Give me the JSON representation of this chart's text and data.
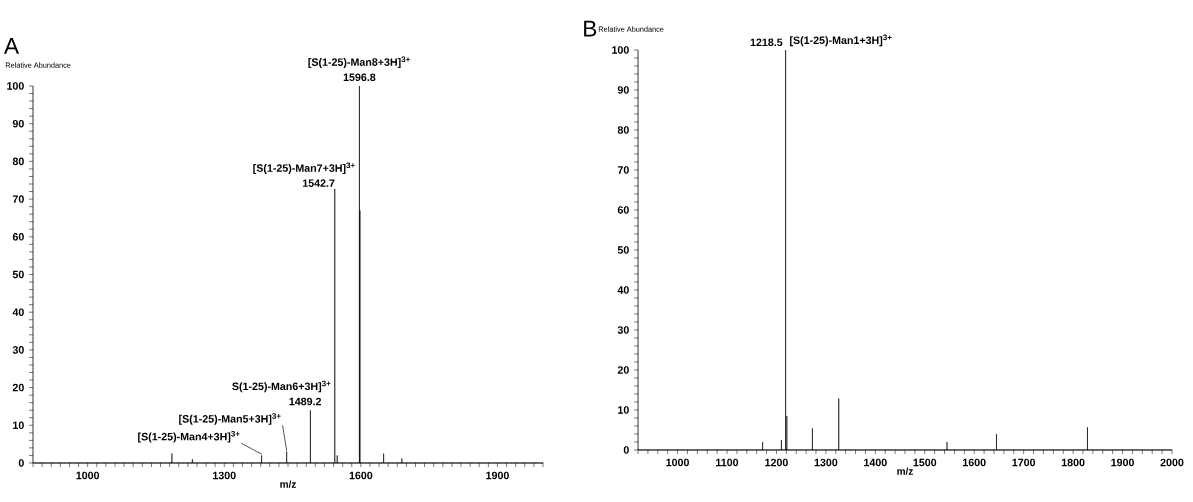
{
  "chart_data": [
    {
      "type": "line",
      "title": "A",
      "xlabel": "m/z",
      "ylabel": "Relative Abundance",
      "xlim": [
        880,
        2000
      ],
      "ylim": [
        0,
        100
      ],
      "xticks": [
        {
          "value": 880,
          "label": null
        },
        {
          "value": 900,
          "label": null
        },
        {
          "value": 920,
          "label": null
        },
        {
          "value": 940,
          "label": null
        },
        {
          "value": 960,
          "label": null
        },
        {
          "value": 980,
          "label": null
        },
        1000,
        {
          "value": 1020,
          "label": null
        },
        {
          "value": 1040,
          "label": null
        },
        {
          "value": 1060,
          "label": null
        },
        {
          "value": 1080,
          "label": null
        },
        {
          "value": 1100,
          "label": null
        },
        {
          "value": 1120,
          "label": null
        },
        {
          "value": 1140,
          "label": null
        },
        {
          "value": 1160,
          "label": null
        },
        {
          "value": 1180,
          "label": null
        },
        {
          "value": 1200,
          "label": null
        },
        {
          "value": 1220,
          "label": null
        },
        {
          "value": 1240,
          "label": null
        },
        {
          "value": 1260,
          "label": null
        },
        {
          "value": 1280,
          "label": null
        },
        1300,
        {
          "value": 1320,
          "label": null
        },
        {
          "value": 1340,
          "label": null
        },
        {
          "value": 1360,
          "label": null
        },
        {
          "value": 1380,
          "label": null
        },
        {
          "value": 1400,
          "label": null
        },
        {
          "value": 1420,
          "label": null
        },
        {
          "value": 1440,
          "label": null
        },
        {
          "value": 1460,
          "label": null
        },
        {
          "value": 1480,
          "label": null
        },
        {
          "value": 1500,
          "label": null
        },
        {
          "value": 1520,
          "label": null
        },
        {
          "value": 1540,
          "label": null
        },
        {
          "value": 1560,
          "label": null
        },
        {
          "value": 1580,
          "label": null
        },
        1600,
        {
          "value": 1620,
          "label": null
        },
        {
          "value": 1640,
          "label": null
        },
        {
          "value": 1660,
          "label": null
        },
        {
          "value": 1680,
          "label": null
        },
        {
          "value": 1700,
          "label": null
        },
        {
          "value": 1720,
          "label": null
        },
        {
          "value": 1740,
          "label": null
        },
        {
          "value": 1760,
          "label": null
        },
        {
          "value": 1780,
          "label": null
        },
        {
          "value": 1800,
          "label": null
        },
        {
          "value": 1820,
          "label": null
        },
        {
          "value": 1840,
          "label": null
        },
        {
          "value": 1860,
          "label": null
        },
        {
          "value": 1880,
          "label": null
        },
        1900,
        {
          "value": 1920,
          "label": null
        },
        {
          "value": 1940,
          "label": null
        },
        {
          "value": 1960,
          "label": null
        },
        {
          "value": 1980,
          "label": null
        },
        {
          "value": 2000,
          "label": null
        }
      ],
      "yticks": [
        0,
        {
          "value": 2,
          "label": null
        },
        {
          "value": 4,
          "label": null
        },
        {
          "value": 6,
          "label": null
        },
        {
          "value": 8,
          "label": null
        },
        10,
        {
          "value": 12,
          "label": null
        },
        {
          "value": 14,
          "label": null
        },
        {
          "value": 16,
          "label": null
        },
        {
          "value": 18,
          "label": null
        },
        20,
        {
          "value": 22,
          "label": null
        },
        {
          "value": 24,
          "label": null
        },
        {
          "value": 26,
          "label": null
        },
        {
          "value": 28,
          "label": null
        },
        30,
        {
          "value": 32,
          "label": null
        },
        {
          "value": 34,
          "label": null
        },
        {
          "value": 36,
          "label": null
        },
        {
          "value": 38,
          "label": null
        },
        40,
        {
          "value": 42,
          "label": null
        },
        {
          "value": 44,
          "label": null
        },
        {
          "value": 46,
          "label": null
        },
        {
          "value": 48,
          "label": null
        },
        50,
        {
          "value": 52,
          "label": null
        },
        {
          "value": 54,
          "label": null
        },
        {
          "value": 56,
          "label": null
        },
        {
          "value": 58,
          "label": null
        },
        60,
        {
          "value": 62,
          "label": null
        },
        {
          "value": 64,
          "label": null
        },
        {
          "value": 66,
          "label": null
        },
        {
          "value": 68,
          "label": null
        },
        70,
        {
          "value": 72,
          "label": null
        },
        {
          "value": 74,
          "label": null
        },
        {
          "value": 76,
          "label": null
        },
        {
          "value": 78,
          "label": null
        },
        80,
        {
          "value": 82,
          "label": null
        },
        {
          "value": 84,
          "label": null
        },
        {
          "value": 86,
          "label": null
        },
        {
          "value": 88,
          "label": null
        },
        90,
        {
          "value": 92,
          "label": null
        },
        {
          "value": 94,
          "label": null
        },
        {
          "value": 96,
          "label": null
        },
        {
          "value": 98,
          "label": null
        },
        100
      ],
      "series": [
        {
          "color": "#000000",
          "x": [
            880,
            1185,
            1185,
            1185,
            1230,
            1230,
            1230,
            1382,
            1382,
            1382,
            1437,
            1437,
            1437,
            1489.2,
            1489.2,
            1489.2,
            1542.7,
            1542.7,
            1542.7,
            1548,
            1548,
            1548,
            1596.8,
            1596.8,
            1596.8,
            1598,
            1598,
            1598,
            1650,
            1650,
            1650,
            1690,
            1690,
            1690,
            2000
          ],
          "values": [
            0,
            0,
            2.5,
            0,
            0,
            1,
            0,
            0,
            2,
            0,
            0,
            3,
            0,
            0,
            14,
            0,
            0,
            72.7,
            0,
            0,
            2,
            0,
            0,
            100,
            0,
            0,
            67,
            0,
            0,
            2.5,
            0,
            0,
            1.2,
            0,
            0
          ]
        }
      ],
      "annotations": [
        {
          "text": "1596.8",
          "x": 1596.8,
          "y": 100
        },
        {
          "text": "[S(1-25)-Man8+3H]$^{3+}$",
          "x": 1596.8,
          "y": 100
        },
        {
          "text": "1542.7",
          "x": 1542.7,
          "y": 72.7
        },
        {
          "text": "[S(1-25)-Man7+3H]$^{3+}$",
          "x": 1542.7,
          "y": 72.7
        },
        {
          "text": "1489.2",
          "x": 1489.2,
          "y": 14
        },
        {
          "text": "S(1-25)-Man6+3H]$^{3+}$",
          "x": 1489.2,
          "y": 14
        },
        {
          "text": "[S(1-25)-Man5+3H]$^{3+}$",
          "x": 1437,
          "y": 3
        },
        {
          "text": "[S(1-25)-Man4+3H]$^{3+}$",
          "x": 1382,
          "y": 2
        }
      ]
    },
    {
      "type": "line",
      "title": "B",
      "xlabel": "m/z",
      "ylabel": "Relative Abundance",
      "xlim": [
        920,
        2000
      ],
      "ylim": [
        0,
        100
      ],
      "xticks": [
        {
          "value": 920,
          "label": null
        },
        {
          "value": 940,
          "label": null
        },
        {
          "value": 960,
          "label": null
        },
        {
          "value": 980,
          "label": null
        },
        1000,
        {
          "value": 1020,
          "label": null
        },
        {
          "value": 1040,
          "label": null
        },
        {
          "value": 1060,
          "label": null
        },
        {
          "value": 1080,
          "label": null
        },
        1100,
        {
          "value": 1120,
          "label": null
        },
        {
          "value": 1140,
          "label": null
        },
        {
          "value": 1160,
          "label": null
        },
        {
          "value": 1180,
          "label": null
        },
        1200,
        {
          "value": 1220,
          "label": null
        },
        {
          "value": 1240,
          "label": null
        },
        {
          "value": 1260,
          "label": null
        },
        {
          "value": 1280,
          "label": null
        },
        1300,
        {
          "value": 1320,
          "label": null
        },
        {
          "value": 1340,
          "label": null
        },
        {
          "value": 1360,
          "label": null
        },
        {
          "value": 1380,
          "label": null
        },
        1400,
        {
          "value": 1420,
          "label": null
        },
        {
          "value": 1440,
          "label": null
        },
        {
          "value": 1460,
          "label": null
        },
        {
          "value": 1480,
          "label": null
        },
        1500,
        {
          "value": 1520,
          "label": null
        },
        {
          "value": 1540,
          "label": null
        },
        {
          "value": 1560,
          "label": null
        },
        {
          "value": 1580,
          "label": null
        },
        1600,
        {
          "value": 1620,
          "label": null
        },
        {
          "value": 1640,
          "label": null
        },
        {
          "value": 1660,
          "label": null
        },
        {
          "value": 1680,
          "label": null
        },
        1700,
        {
          "value": 1720,
          "label": null
        },
        {
          "value": 1740,
          "label": null
        },
        {
          "value": 1760,
          "label": null
        },
        {
          "value": 1780,
          "label": null
        },
        1800,
        {
          "value": 1820,
          "label": null
        },
        {
          "value": 1840,
          "label": null
        },
        {
          "value": 1860,
          "label": null
        },
        {
          "value": 1880,
          "label": null
        },
        1900,
        {
          "value": 1920,
          "label": null
        },
        {
          "value": 1940,
          "label": null
        },
        {
          "value": 1960,
          "label": null
        },
        {
          "value": 1980,
          "label": null
        },
        2000
      ],
      "yticks": [
        0,
        {
          "value": 2,
          "label": null
        },
        {
          "value": 4,
          "label": null
        },
        {
          "value": 6,
          "label": null
        },
        {
          "value": 8,
          "label": null
        },
        10,
        {
          "value": 12,
          "label": null
        },
        {
          "value": 14,
          "label": null
        },
        {
          "value": 16,
          "label": null
        },
        {
          "value": 18,
          "label": null
        },
        20,
        {
          "value": 22,
          "label": null
        },
        {
          "value": 24,
          "label": null
        },
        {
          "value": 26,
          "label": null
        },
        {
          "value": 28,
          "label": null
        },
        30,
        {
          "value": 32,
          "label": null
        },
        {
          "value": 34,
          "label": null
        },
        {
          "value": 36,
          "label": null
        },
        {
          "value": 38,
          "label": null
        },
        40,
        {
          "value": 42,
          "label": null
        },
        {
          "value": 44,
          "label": null
        },
        {
          "value": 46,
          "label": null
        },
        {
          "value": 48,
          "label": null
        },
        50,
        {
          "value": 52,
          "label": null
        },
        {
          "value": 54,
          "label": null
        },
        {
          "value": 56,
          "label": null
        },
        {
          "value": 58,
          "label": null
        },
        60,
        {
          "value": 62,
          "label": null
        },
        {
          "value": 64,
          "label": null
        },
        {
          "value": 66,
          "label": null
        },
        {
          "value": 68,
          "label": null
        },
        70,
        {
          "value": 72,
          "label": null
        },
        {
          "value": 74,
          "label": null
        },
        {
          "value": 76,
          "label": null
        },
        {
          "value": 78,
          "label": null
        },
        80,
        {
          "value": 82,
          "label": null
        },
        {
          "value": 84,
          "label": null
        },
        {
          "value": 86,
          "label": null
        },
        {
          "value": 88,
          "label": null
        },
        90,
        {
          "value": 92,
          "label": null
        },
        {
          "value": 94,
          "label": null
        },
        {
          "value": 96,
          "label": null
        },
        {
          "value": 98,
          "label": null
        },
        100
      ],
      "series": [
        {
          "color": "#000000",
          "x": [
            920,
            1172,
            1172,
            1172,
            1210,
            1210,
            1210,
            1218.5,
            1218.5,
            1218.5,
            1221,
            1221,
            1221,
            1272.7,
            1272.7,
            1272.7,
            1326,
            1326,
            1326,
            1545,
            1545,
            1545,
            1645,
            1645,
            1645,
            1829,
            1829,
            1829,
            2000
          ],
          "values": [
            0,
            0,
            2,
            0,
            0,
            2.5,
            0,
            0,
            100,
            0,
            0,
            8.5,
            0,
            0,
            5.4,
            0,
            0,
            12.9,
            0,
            0,
            2,
            0,
            0,
            4,
            0,
            0,
            5.7,
            0,
            0
          ]
        }
      ],
      "annotations": [
        {
          "text": "1218.5",
          "x": 1218.5,
          "y": 100
        },
        {
          "text": "[S(1-25)-Man1+3H]$^{3+}$",
          "x": 1218.5,
          "y": 100
        }
      ]
    }
  ]
}
